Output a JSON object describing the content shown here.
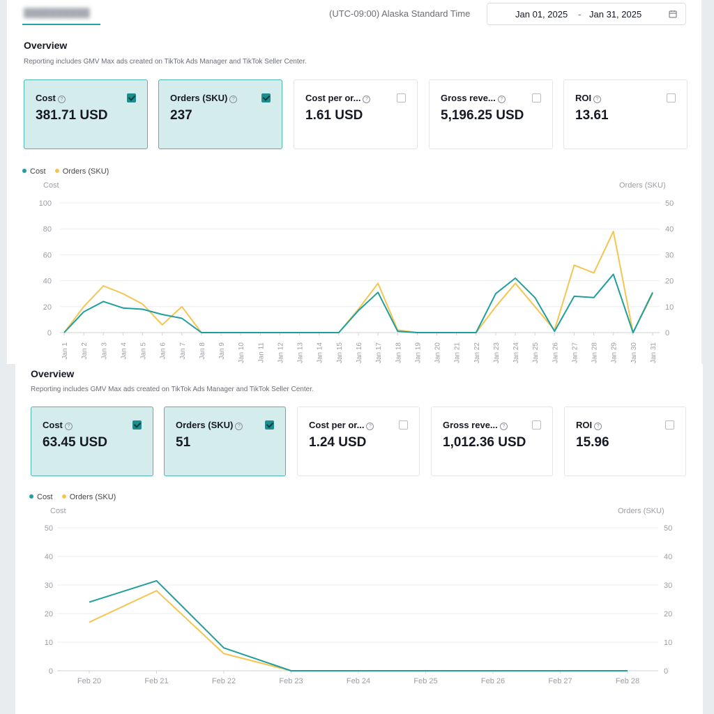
{
  "header": {
    "timezone": "(UTC-09:00) Alaska Standard Time",
    "date_start": "Jan 01, 2025",
    "date_sep": "-",
    "date_end": "Jan 31, 2025"
  },
  "overviews": [
    {
      "title": "Overview",
      "subtitle": "Reporting includes GMV Max ads created on TikTok Ads Manager and TikTok Seller Center.",
      "cards": [
        {
          "label": "Cost",
          "value": "381.71 USD",
          "checked": true
        },
        {
          "label": "Orders (SKU)",
          "value": "237",
          "checked": true
        },
        {
          "label": "Cost per or...",
          "value": "1.61 USD",
          "checked": false
        },
        {
          "label": "Gross reve...",
          "value": "5,196.25 USD",
          "checked": false
        },
        {
          "label": "ROI",
          "value": "13.61",
          "checked": false
        }
      ],
      "legend": [
        "Cost",
        "Orders (SKU)"
      ],
      "left_axis_title": "Cost",
      "right_axis_title": "Orders (SKU)"
    },
    {
      "title": "Overview",
      "subtitle": "Reporting includes GMV Max ads created on TikTok Ads Manager and TikTok Seller Center.",
      "cards": [
        {
          "label": "Cost",
          "value": "63.45 USD",
          "checked": true
        },
        {
          "label": "Orders (SKU)",
          "value": "51",
          "checked": true
        },
        {
          "label": "Cost per or...",
          "value": "1.24 USD",
          "checked": false
        },
        {
          "label": "Gross reve...",
          "value": "1,012.36 USD",
          "checked": false
        },
        {
          "label": "ROI",
          "value": "15.96",
          "checked": false
        }
      ],
      "legend": [
        "Cost",
        "Orders (SKU)"
      ],
      "left_axis_title": "Cost",
      "right_axis_title": "Orders (SKU)"
    }
  ],
  "colors": {
    "cost": "#1f9e9e",
    "orders": "#f5c451",
    "selected_card": "#d4ecec"
  },
  "icons": {
    "help": "question-circle-icon",
    "calendar": "calendar-icon",
    "checkbox": "checkbox-icon"
  },
  "chart_data": [
    {
      "type": "line",
      "title": "",
      "x": [
        "Jan 1",
        "Jan 2",
        "Jan 3",
        "Jan 4",
        "Jan 5",
        "Jan 6",
        "Jan 7",
        "Jan 8",
        "Jan 9",
        "Jan 10",
        "Jan 11",
        "Jan 12",
        "Jan 13",
        "Jan 14",
        "Jan 15",
        "Jan 16",
        "Jan 17",
        "Jan 18",
        "Jan 19",
        "Jan 20",
        "Jan 21",
        "Jan 22",
        "Jan 23",
        "Jan 24",
        "Jan 25",
        "Jan 26",
        "Jan 27",
        "Jan 28",
        "Jan 29",
        "Jan 30",
        "Jan 31"
      ],
      "series": [
        {
          "name": "Cost",
          "axis": "left",
          "values": [
            0,
            16,
            24,
            19,
            18,
            14,
            11,
            0,
            0,
            0,
            0,
            0,
            0,
            0,
            0,
            17,
            31,
            1,
            0,
            0,
            0,
            0,
            30,
            42,
            27,
            1,
            28,
            27,
            45,
            0,
            31
          ]
        },
        {
          "name": "Orders (SKU)",
          "axis": "right",
          "values": [
            0,
            10,
            18,
            15,
            11,
            3,
            10,
            0,
            0,
            0,
            0,
            0,
            0,
            0,
            0,
            9,
            19,
            1,
            0,
            0,
            0,
            0,
            10,
            19,
            10,
            1,
            26,
            23,
            39,
            0,
            15
          ]
        }
      ],
      "ylabel_left": "Cost",
      "ylim_left": [
        0,
        100
      ],
      "yticks_left": [
        0,
        20,
        40,
        60,
        80,
        100
      ],
      "ylabel_right": "Orders (SKU)",
      "ylim_right": [
        0,
        50
      ],
      "yticks_right": [
        0,
        10,
        20,
        30,
        40,
        50
      ],
      "legend": "top-left",
      "grid": true
    },
    {
      "type": "line",
      "title": "",
      "x": [
        "Feb 20",
        "Feb 21",
        "Feb 22",
        "Feb 23",
        "Feb 24",
        "Feb 25",
        "Feb 26",
        "Feb 27",
        "Feb 28"
      ],
      "series": [
        {
          "name": "Cost",
          "axis": "left",
          "values": [
            24,
            31.5,
            8,
            0,
            0,
            0,
            0,
            0,
            0
          ]
        },
        {
          "name": "Orders (SKU)",
          "axis": "right",
          "values": [
            17,
            28,
            6,
            0,
            0,
            0,
            0,
            0,
            0
          ]
        }
      ],
      "ylabel_left": "Cost",
      "ylim_left": [
        0,
        50
      ],
      "yticks_left": [
        0,
        10,
        20,
        30,
        40,
        50
      ],
      "ylabel_right": "Orders (SKU)",
      "ylim_right": [
        0,
        50
      ],
      "yticks_right": [
        0,
        10,
        20,
        30,
        40,
        50
      ],
      "legend": "top-left",
      "grid": true
    }
  ]
}
